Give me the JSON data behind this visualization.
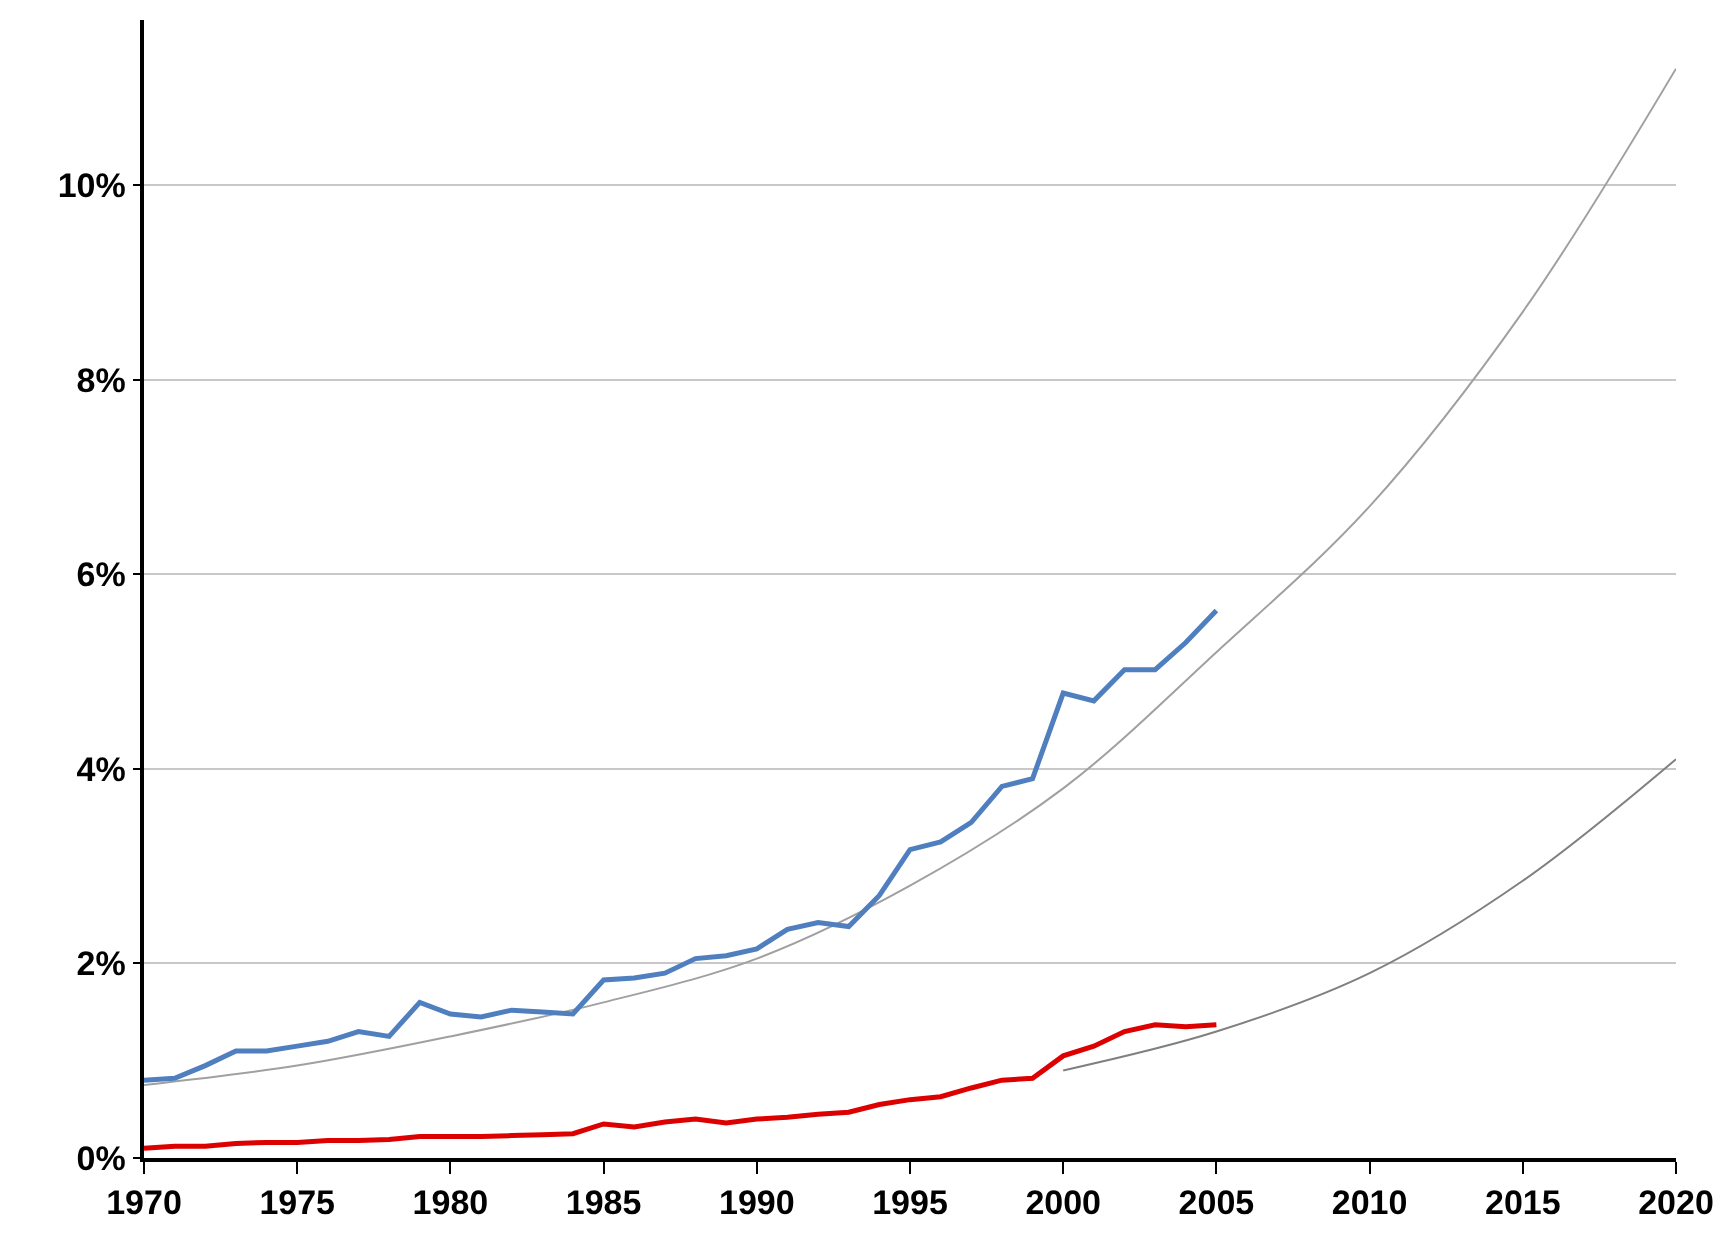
{
  "chart_data": {
    "type": "line",
    "xlim": [
      1970,
      2020
    ],
    "xticks": [
      1970,
      1975,
      1980,
      1985,
      1990,
      1995,
      2000,
      2005,
      2010,
      2015,
      2020
    ],
    "ylim": [
      0,
      11.7
    ],
    "yticks": [
      {
        "value": 0,
        "label": "0%"
      },
      {
        "value": 2,
        "label": "2%"
      },
      {
        "value": 4,
        "label": "4%"
      },
      {
        "value": 6,
        "label": "6%"
      },
      {
        "value": 8,
        "label": "8%"
      },
      {
        "value": 10,
        "label": "10%"
      }
    ],
    "grid": "y",
    "marker": "none",
    "line_style": "solid",
    "series": [
      {
        "color": "#4f7fbf",
        "x": [
          1970,
          1971,
          1972,
          1973,
          1974,
          1975,
          1976,
          1977,
          1978,
          1979,
          1980,
          1981,
          1982,
          1983,
          1984,
          1985,
          1986,
          1987,
          1988,
          1989,
          1990,
          1991,
          1992,
          1993,
          1994,
          1995,
          1996,
          1997,
          1998,
          1999,
          2000,
          2001,
          2002,
          2003,
          2004,
          2005
        ],
        "values": [
          0.8,
          0.82,
          0.95,
          1.1,
          1.1,
          1.15,
          1.2,
          1.3,
          1.25,
          1.6,
          1.48,
          1.45,
          1.52,
          1.5,
          1.48,
          1.83,
          1.85,
          1.9,
          2.05,
          2.08,
          2.15,
          2.35,
          2.42,
          2.38,
          2.7,
          3.17,
          3.25,
          3.45,
          3.82,
          3.9,
          4.78,
          4.7,
          5.02,
          5.02,
          5.3,
          5.63
        ]
      },
      {
        "color": "#dd0000",
        "x": [
          1970,
          1971,
          1972,
          1973,
          1974,
          1975,
          1976,
          1977,
          1978,
          1979,
          1980,
          1981,
          1982,
          1983,
          1984,
          1985,
          1986,
          1987,
          1988,
          1989,
          1990,
          1991,
          1992,
          1993,
          1994,
          1995,
          1996,
          1997,
          1998,
          1999,
          2000,
          2001,
          2002,
          2003,
          2004,
          2005
        ],
        "values": [
          0.1,
          0.12,
          0.12,
          0.15,
          0.16,
          0.16,
          0.18,
          0.18,
          0.19,
          0.22,
          0.22,
          0.22,
          0.23,
          0.24,
          0.25,
          0.35,
          0.32,
          0.37,
          0.4,
          0.36,
          0.4,
          0.42,
          0.45,
          0.47,
          0.55,
          0.6,
          0.63,
          0.72,
          0.8,
          0.82,
          1.05,
          1.15,
          1.3,
          1.37,
          1.35,
          1.37
        ]
      },
      {
        "color": "#a0a0a0",
        "x": [
          1970,
          1975,
          1980,
          1985,
          1990,
          1995,
          2000,
          2005,
          2010,
          2015,
          2020
        ],
        "values": [
          0.75,
          0.95,
          1.25,
          1.6,
          2.05,
          2.8,
          3.8,
          5.2,
          6.7,
          8.7,
          11.2
        ]
      },
      {
        "color": "#808080",
        "x": [
          2000,
          2005,
          2010,
          2015,
          2020
        ],
        "values": [
          0.9,
          1.3,
          1.9,
          2.85,
          4.1
        ]
      }
    ]
  }
}
